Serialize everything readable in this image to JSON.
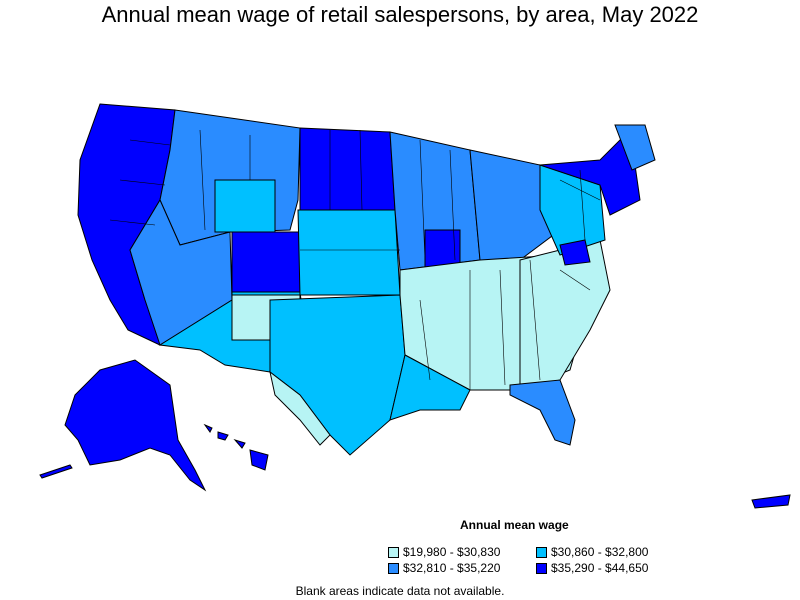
{
  "title": "Annual mean wage of retail salespersons, by area, May 2022",
  "legend": {
    "title": "Annual mean wage",
    "items": [
      {
        "label": "$19,980 - $30,830",
        "color": "#b7f4f4"
      },
      {
        "label": "$30,860 - $32,800",
        "color": "#00c0ff"
      },
      {
        "label": "$32,810 - $35,220",
        "color": "#2a8cff"
      },
      {
        "label": "$35,290 - $44,650",
        "color": "#0000ff"
      }
    ]
  },
  "footnote": "Blank areas indicate data not available."
}
